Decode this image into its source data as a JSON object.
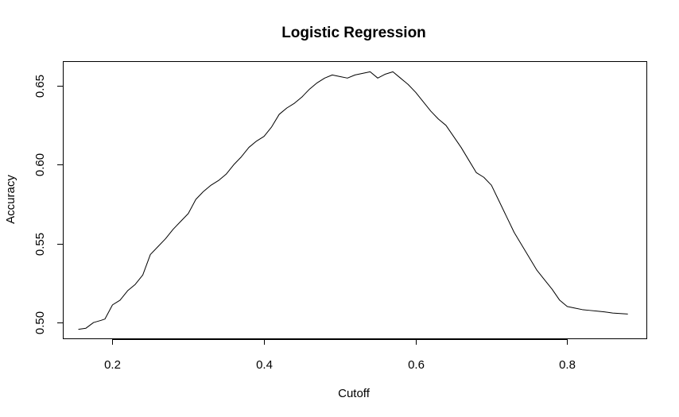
{
  "chart_data": {
    "type": "line",
    "title": "Logistic Regression",
    "xlabel": "Cutoff",
    "ylabel": "Accuracy",
    "xlim": [
      0.135,
      0.905
    ],
    "ylim": [
      0.4895,
      0.6655
    ],
    "x_ticks": [
      0.2,
      0.4,
      0.6,
      0.8
    ],
    "x_tick_labels": [
      "0.2",
      "0.4",
      "0.6",
      "0.8"
    ],
    "y_ticks": [
      0.5,
      0.55,
      0.6,
      0.65
    ],
    "y_tick_labels": [
      "0.50",
      "0.55",
      "0.60",
      "0.65"
    ],
    "grid": false,
    "series": [
      {
        "color": "#000000",
        "x": [
          0.155,
          0.165,
          0.175,
          0.185,
          0.19,
          0.2,
          0.21,
          0.22,
          0.23,
          0.24,
          0.25,
          0.26,
          0.27,
          0.28,
          0.29,
          0.3,
          0.31,
          0.32,
          0.33,
          0.34,
          0.35,
          0.36,
          0.37,
          0.38,
          0.39,
          0.4,
          0.41,
          0.42,
          0.43,
          0.44,
          0.45,
          0.46,
          0.47,
          0.48,
          0.49,
          0.5,
          0.51,
          0.52,
          0.53,
          0.54,
          0.55,
          0.56,
          0.57,
          0.58,
          0.59,
          0.6,
          0.61,
          0.62,
          0.63,
          0.64,
          0.65,
          0.66,
          0.67,
          0.68,
          0.69,
          0.7,
          0.71,
          0.72,
          0.73,
          0.74,
          0.75,
          0.76,
          0.77,
          0.78,
          0.79,
          0.8,
          0.81,
          0.82,
          0.83,
          0.84,
          0.85,
          0.86,
          0.87,
          0.88
        ],
        "y": [
          0.4955,
          0.4962,
          0.4998,
          0.5012,
          0.502,
          0.511,
          0.514,
          0.52,
          0.524,
          0.53,
          0.543,
          0.548,
          0.553,
          0.559,
          0.564,
          0.569,
          0.578,
          0.583,
          0.587,
          0.59,
          0.594,
          0.6,
          0.605,
          0.611,
          0.615,
          0.618,
          0.624,
          0.632,
          0.636,
          0.639,
          0.643,
          0.648,
          0.652,
          0.655,
          0.657,
          0.656,
          0.655,
          0.657,
          0.658,
          0.659,
          0.655,
          0.6575,
          0.659,
          0.655,
          0.651,
          0.646,
          0.64,
          0.634,
          0.629,
          0.625,
          0.618,
          0.611,
          0.603,
          0.595,
          0.592,
          0.587,
          0.577,
          0.567,
          0.557,
          0.549,
          0.541,
          0.533,
          0.527,
          0.521,
          0.514,
          0.51,
          0.509,
          0.508,
          0.5075,
          0.507,
          0.5065,
          0.5058,
          0.5055,
          0.5052
        ]
      }
    ]
  }
}
